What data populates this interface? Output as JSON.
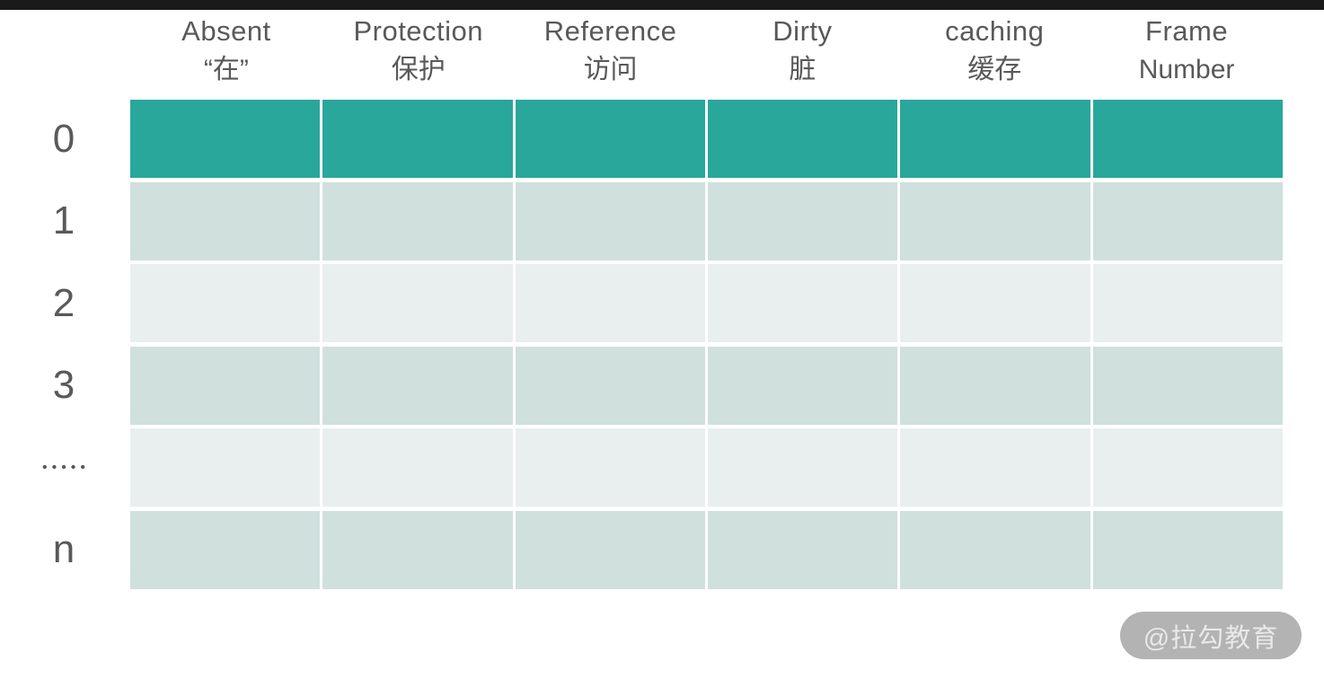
{
  "colors": {
    "top_bar": "#1a1a1a",
    "row_dark": "#29a79b",
    "row_light": "#cfe0dd",
    "row_lighter": "#e8efee",
    "header_text": "#595959",
    "label_text": "#595959",
    "grid_line": "#ffffff",
    "watermark_bg": "#b3b3b3",
    "watermark_text": "#e9e9e9"
  },
  "table": {
    "columns": [
      {
        "id": "absent",
        "line1": "Absent",
        "line2": "“在”"
      },
      {
        "id": "protection",
        "line1": "Protection",
        "line2": "保护"
      },
      {
        "id": "reference",
        "line1": "Reference",
        "line2": "访问"
      },
      {
        "id": "dirty",
        "line1": "Dirty",
        "line2": "脏"
      },
      {
        "id": "caching",
        "line1": "caching",
        "line2": "缓存"
      },
      {
        "id": "frame-number",
        "line1": "Frame",
        "line2": "Number"
      }
    ],
    "rows": [
      {
        "label": "0",
        "shade": "dark"
      },
      {
        "label": "1",
        "shade": "light"
      },
      {
        "label": "2",
        "shade": "lighter"
      },
      {
        "label": "3",
        "shade": "light"
      },
      {
        "label": "•••••",
        "shade": "lighter"
      },
      {
        "label": "n",
        "shade": "light"
      }
    ]
  },
  "watermark": {
    "text": "@拉勾教育"
  }
}
